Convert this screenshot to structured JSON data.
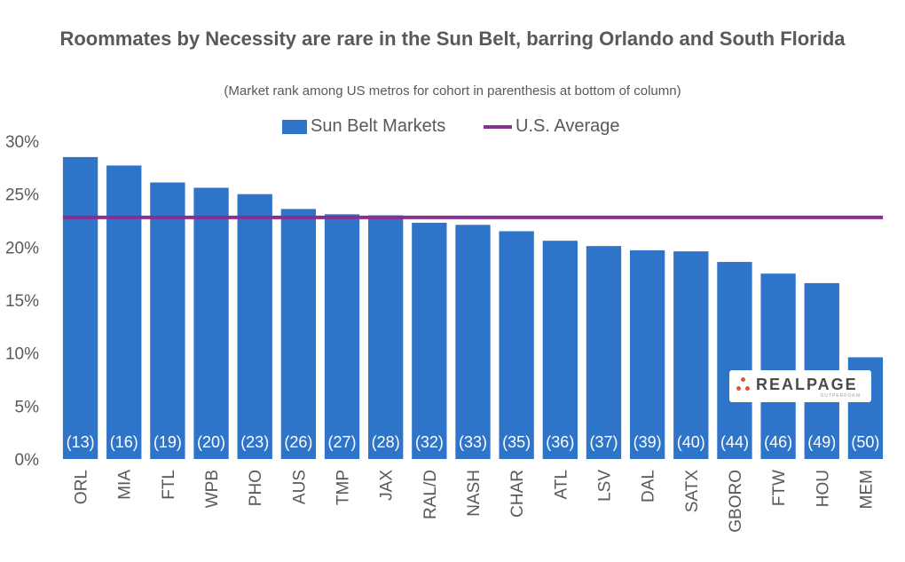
{
  "chart_data": {
    "type": "bar",
    "title": "Roommates by Necessity are rare in the Sun Belt, barring Orlando and South Florida",
    "subtitle": "(Market rank among US metros for cohort in parenthesis at bottom of column)",
    "categories": [
      "ORL",
      "MIA",
      "FTL",
      "WPB",
      "PHO",
      "AUS",
      "TMP",
      "JAX",
      "RAL/D",
      "NASH",
      "CHAR",
      "ATL",
      "LSV",
      "DAL",
      "SATX",
      "GBORO",
      "FTW",
      "HOU",
      "MEM"
    ],
    "series": [
      {
        "name": "Sun Belt Markets",
        "color": "#2e75c9",
        "values": [
          28.5,
          27.7,
          26.1,
          25.6,
          25.0,
          23.6,
          23.1,
          23.0,
          22.3,
          22.1,
          21.5,
          20.6,
          20.1,
          19.7,
          19.6,
          18.6,
          17.5,
          16.6,
          9.6
        ],
        "rank_labels": [
          "(13)",
          "(16)",
          "(19)",
          "(20)",
          "(23)",
          "(26)",
          "(27)",
          "(28)",
          "(32)",
          "(33)",
          "(35)",
          "(36)",
          "(37)",
          "(39)",
          "(40)",
          "(44)",
          "(46)",
          "(49)",
          "(50)"
        ]
      }
    ],
    "reference_line": {
      "name": "U.S. Average",
      "value": 22.8,
      "color": "#8b2e8f"
    },
    "ylim": [
      0,
      30
    ],
    "yticks": [
      "0%",
      "5%",
      "10%",
      "15%",
      "20%",
      "25%",
      "30%"
    ],
    "xlabel": "",
    "ylabel": "",
    "grid": false,
    "legend_position": "top"
  },
  "logo": {
    "word": "REALPAGE",
    "tagline": "OUTPERFORM",
    "icon": "realpage-dots-icon",
    "accent": "#e0533b"
  }
}
